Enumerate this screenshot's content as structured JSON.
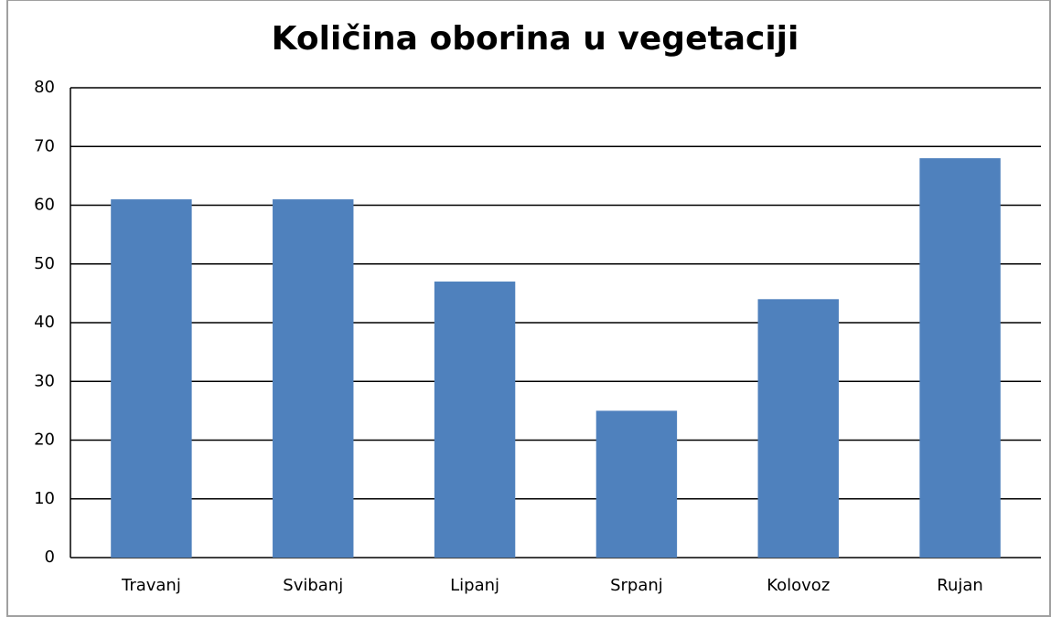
{
  "chart_data": {
    "type": "bar",
    "title": "Količina oborina u vegetaciji",
    "categories": [
      "Travanj",
      "Svibanj",
      "Lipanj",
      "Srpanj",
      "Kolovoz",
      "Rujan"
    ],
    "values": [
      61,
      61,
      47,
      25,
      44,
      68
    ],
    "color": "#4f81bd",
    "ylim": [
      0,
      80
    ],
    "yticks": [
      0,
      10,
      20,
      30,
      40,
      50,
      60,
      70,
      80
    ],
    "grid": true
  }
}
